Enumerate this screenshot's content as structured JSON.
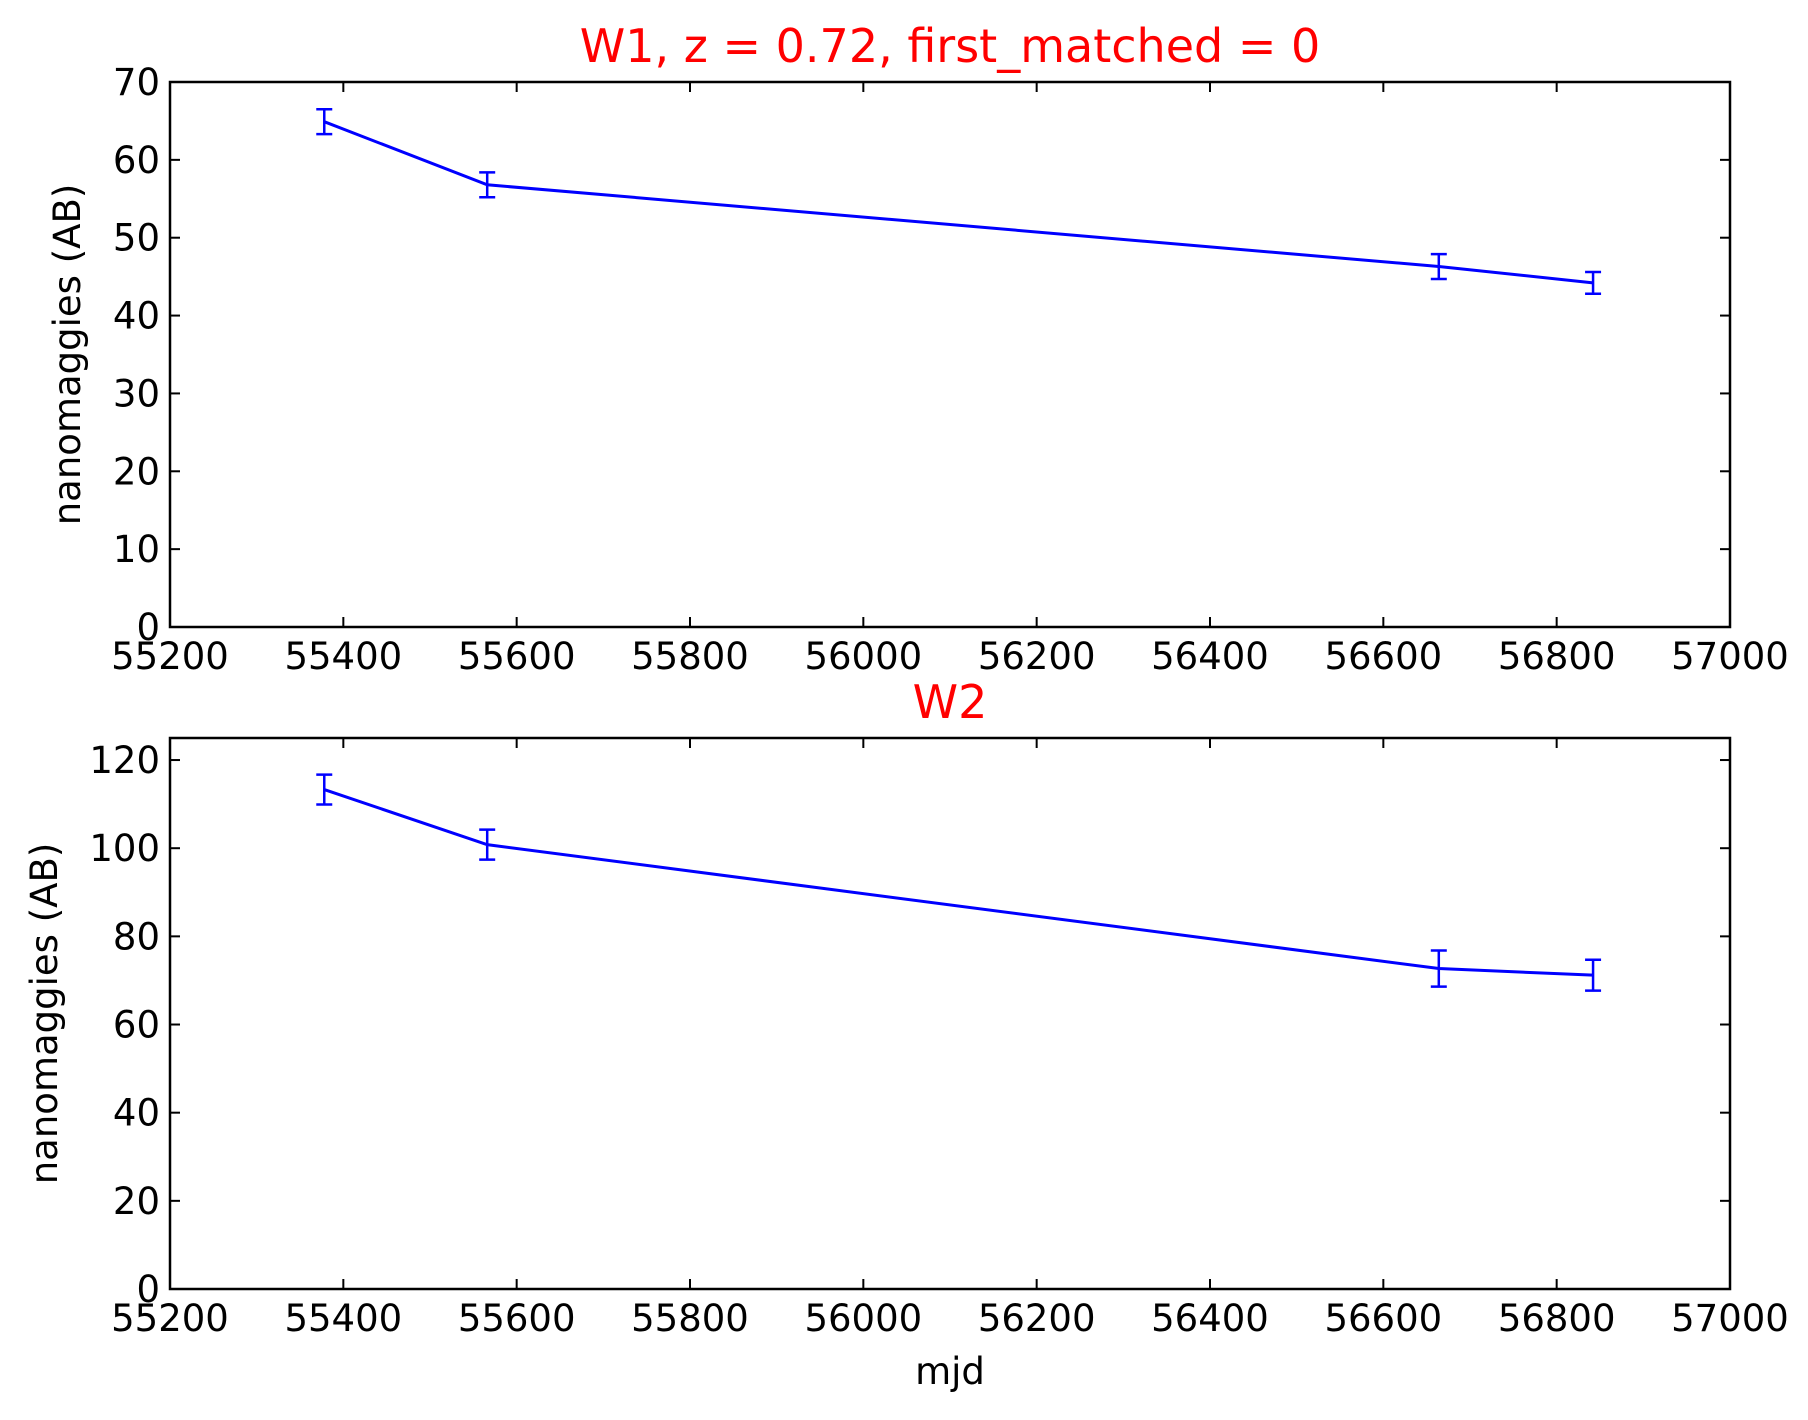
{
  "chart_data": [
    {
      "type": "line",
      "title": "W1, z = 0.72, first_matched = 0",
      "xlabel": "",
      "ylabel": "nanomaggies (AB)",
      "xlim": [
        55200,
        57000
      ],
      "ylim": [
        0,
        70
      ],
      "xticks": [
        55200,
        55400,
        55600,
        55800,
        56000,
        56200,
        56400,
        56600,
        56800,
        57000
      ],
      "yticks": [
        0,
        10,
        20,
        30,
        40,
        50,
        60,
        70
      ],
      "series": [
        {
          "color": "#0000ff",
          "x": [
            55378,
            55566,
            56664,
            56842
          ],
          "y": [
            64.9,
            56.8,
            46.3,
            44.2
          ],
          "yerr": [
            1.6,
            1.6,
            1.6,
            1.4
          ]
        }
      ],
      "grid": false
    },
    {
      "type": "line",
      "title": "W2",
      "xlabel": "mjd",
      "ylabel": "nanomaggies (AB)",
      "xlim": [
        55200,
        57000
      ],
      "ylim": [
        0,
        125
      ],
      "xticks": [
        55200,
        55400,
        55600,
        55800,
        56000,
        56200,
        56400,
        56600,
        56800,
        57000
      ],
      "yticks": [
        0,
        20,
        40,
        60,
        80,
        100,
        120
      ],
      "series": [
        {
          "color": "#0000ff",
          "x": [
            55378,
            55566,
            56664,
            56842
          ],
          "y": [
            113.3,
            100.8,
            72.7,
            71.2
          ],
          "yerr": [
            3.4,
            3.4,
            4.1,
            3.5
          ]
        }
      ],
      "grid": false
    }
  ]
}
